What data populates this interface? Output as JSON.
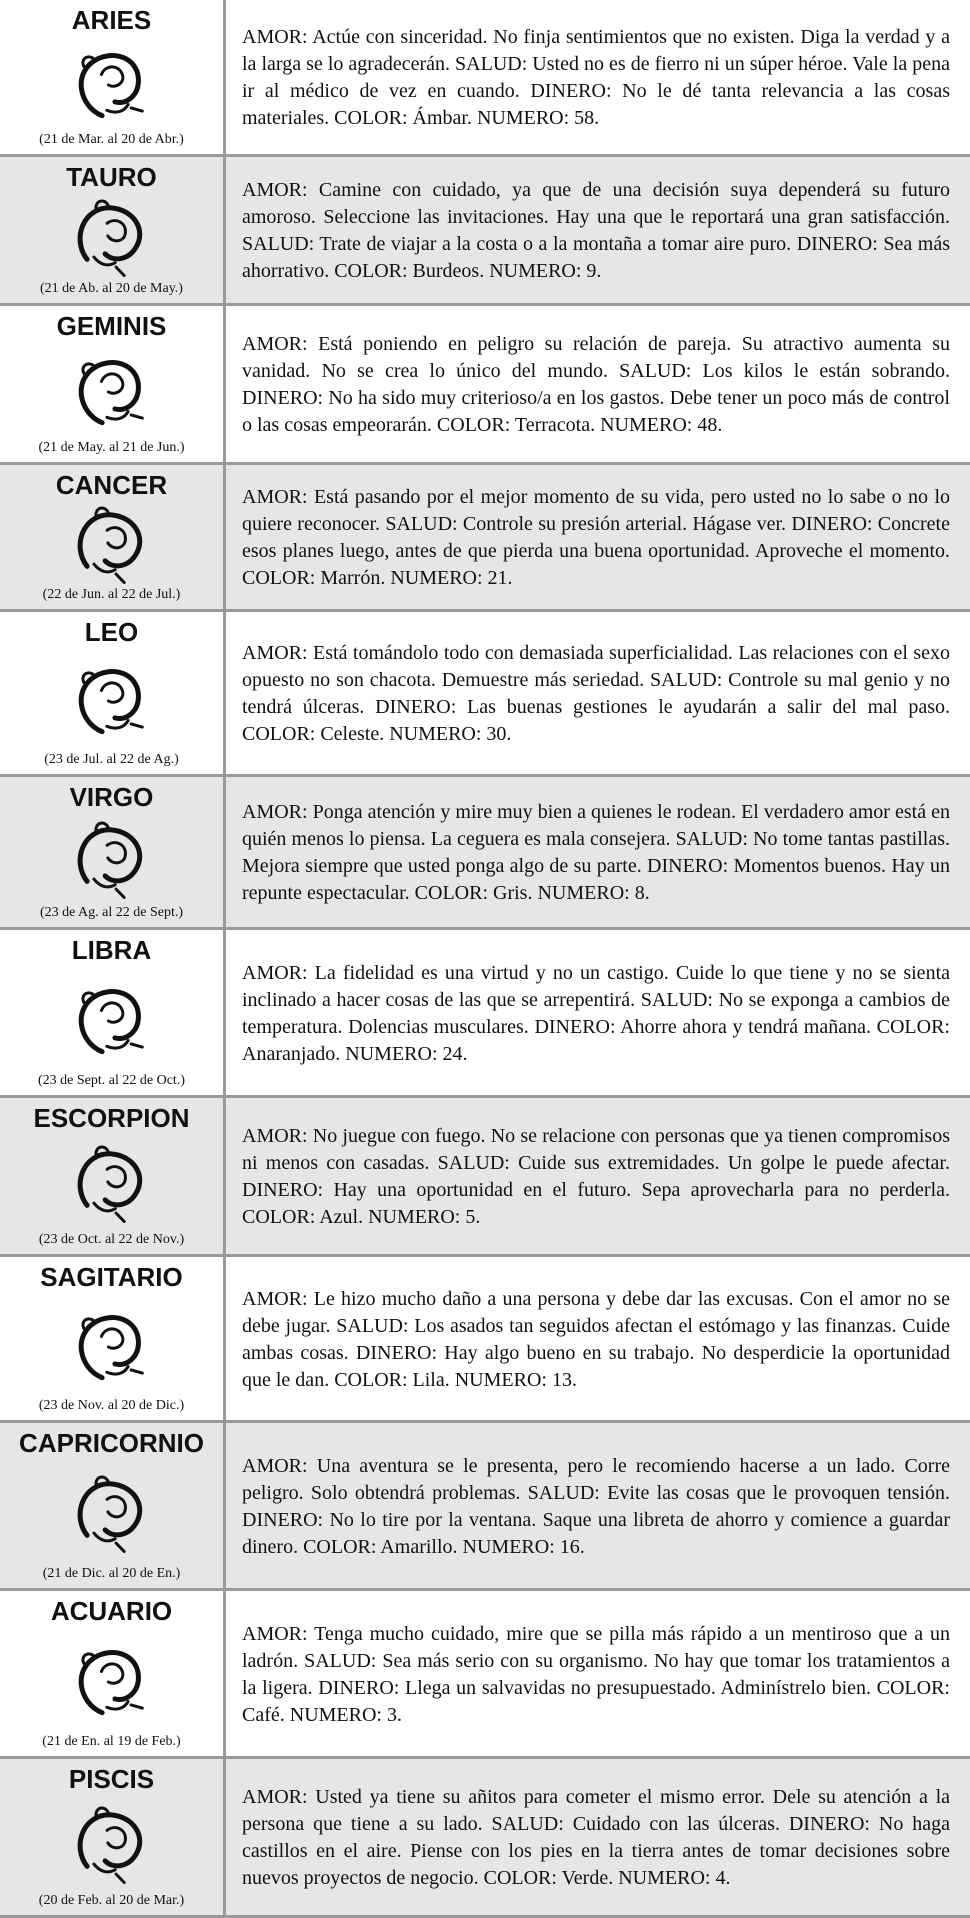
{
  "signs": [
    {
      "name": "ARIES",
      "dates": "(21 de Mar. al 20 de Abr.)",
      "text": "AMOR: Actúe con sinceridad. No finja sentimientos que no existen. Diga la verdad y a la larga se lo agradecerán. SALUD: Usted no es de fierro ni un súper héroe. Vale la pena ir al médico de vez en cuando. DINERO: No le dé tanta relevancia a las cosas materiales. COLOR: Ámbar. NUMERO: 58."
    },
    {
      "name": "TAURO",
      "dates": "(21 de Ab. al 20 de May.)",
      "text": "AMOR: Camine con cuidado, ya que de una decisión suya dependerá su futuro amoroso. Seleccione las invitaciones. Hay una que le reportará una gran satisfacción. SALUD: Trate de viajar a la costa o a la montaña a tomar aire puro. DINERO: Sea más ahorrativo. COLOR: Burdeos. NUMERO: 9."
    },
    {
      "name": "GEMINIS",
      "dates": "(21 de May. al 21 de Jun.)",
      "text": "AMOR: Está poniendo en peligro su relación de pareja. Su atractivo aumenta su vanidad. No se crea lo único del mundo. SALUD: Los kilos le están sobrando. DINERO: No ha sido muy criterioso/a en los gastos. Debe tener un poco más de control o las cosas empeorarán. COLOR: Terracota. NUMERO: 48."
    },
    {
      "name": "CANCER",
      "dates": "(22 de Jun. al 22 de Jul.)",
      "text": "AMOR: Está pasando por el mejor momento de su vida, pero usted no lo sabe o no lo quiere reconocer. SALUD: Controle su presión arterial. Hágase ver. DINERO: Concrete esos planes luego, antes de que pierda una buena oportunidad. Aproveche el momento. COLOR: Marrón. NUMERO: 21."
    },
    {
      "name": "LEO",
      "dates": "(23 de Jul. al 22 de Ag.)",
      "text": "AMOR: Está tomándolo todo con demasiada superficialidad. Las relaciones con el sexo opuesto no son chacota. Demuestre más seriedad. SALUD: Controle su mal genio y no tendrá úlceras. DINERO: Las buenas gestiones le ayudarán a salir del mal paso. COLOR: Celeste. NUMERO: 30."
    },
    {
      "name": "VIRGO",
      "dates": "(23 de Ag. al 22 de Sept.)",
      "text": "AMOR: Ponga atención y mire muy bien a quienes le rodean. El verdadero amor está en quién menos lo piensa. La ceguera es mala consejera. SALUD: No tome tantas pastillas. Mejora siempre que usted ponga algo de su parte. DINERO: Momentos buenos. Hay un repunte espectacular. COLOR: Gris. NUMERO: 8."
    },
    {
      "name": "LIBRA",
      "dates": "(23 de Sept. al 22 de Oct.)",
      "text": "AMOR: La fidelidad es una virtud y no un castigo. Cuide lo que tiene y no se sienta inclinado a hacer cosas de las que se arrepentirá. SALUD: No se exponga a cambios de temperatura. Dolencias musculares. DINERO: Ahorre ahora y tendrá mañana. COLOR: Anaranjado. NUMERO: 24."
    },
    {
      "name": "ESCORPION",
      "dates": "(23 de Oct. al 22 de Nov.)",
      "text": "AMOR: No juegue con fuego. No se relacione con personas que ya tienen compromisos ni menos con casadas. SALUD: Cuide sus extremidades. Un golpe le puede afectar. DINERO: Hay una oportunidad en el futuro. Sepa aprovecharla para no perderla. COLOR: Azul. NUMERO: 5."
    },
    {
      "name": "SAGITARIO",
      "dates": "(23 de Nov. al 20 de Dic.)",
      "text": "AMOR: Le hizo mucho daño a una persona y debe dar las excusas. Con el amor no se debe jugar. SALUD: Los asados tan seguidos afectan el estómago y las finanzas. Cuide ambas cosas. DINERO: Hay algo bueno en su trabajo. No desperdicie la oportunidad que le dan. COLOR: Lila. NUMERO: 13."
    },
    {
      "name": "CAPRICORNIO",
      "dates": "(21 de Dic. al 20 de En.)",
      "text": "AMOR: Una aventura se le presenta, pero le recomiendo hacerse a un lado. Corre peligro. Solo obtendrá problemas. SALUD: Evite las cosas que le provoquen tensión. DINERO: No lo tire por la ventana. Saque una libreta de ahorro y comience a guardar dinero. COLOR: Amarillo. NUMERO: 16."
    },
    {
      "name": "ACUARIO",
      "dates": "(21 de En. al 19 de Feb.)",
      "text": "AMOR: Tenga mucho cuidado, mire que se pilla más rápido a un mentiroso que a un ladrón. SALUD: Sea más serio con su organismo. No hay que tomar los tratamientos a la ligera. DINERO: Llega un salvavidas no presupuestado. Adminístrelo bien. COLOR: Café. NUMERO: 3."
    },
    {
      "name": "PISCIS",
      "dates": "(20 de Feb. al 20 de Mar.)",
      "text": "AMOR: Usted ya tiene su añitos para cometer el mismo error. Dele su atención a la persona que tiene a su lado. SALUD: Cuidado con las úlceras. DINERO: No haga castillos en el aire. Piense con los pies en la tierra antes de tomar decisiones sobre nuevos proyectos de negocio. COLOR: Verde. NUMERO: 4."
    }
  ]
}
